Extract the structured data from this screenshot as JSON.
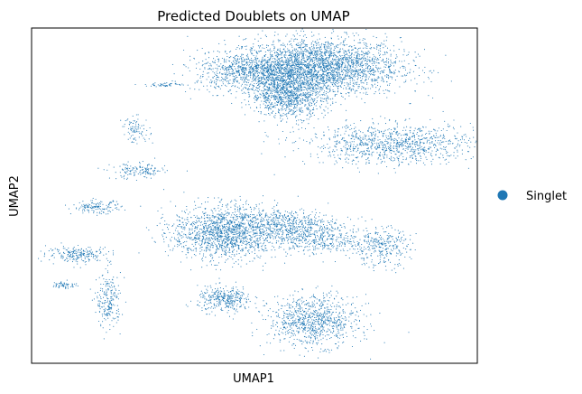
{
  "chart_data": {
    "type": "scatter",
    "title": "Predicted Doublets on UMAP",
    "xlabel": "UMAP1",
    "ylabel": "UMAP2",
    "xticks": [],
    "yticks": [],
    "grid": false,
    "legend_placement": "right",
    "series": [
      {
        "name": "Singlet",
        "color": "#1f77b4",
        "clusters": [
          {
            "label": "upper-main",
            "x": 7.2,
            "y": 7.9,
            "sx": 1.6,
            "sy": 0.8,
            "n": 2600
          },
          {
            "label": "upper-left-lobe",
            "x": 4.6,
            "y": 7.6,
            "sx": 1.2,
            "sy": 0.55,
            "n": 1000
          },
          {
            "label": "upper-stem",
            "x": 5.9,
            "y": 6.3,
            "sx": 0.75,
            "sy": 0.6,
            "n": 900
          },
          {
            "label": "arm-right",
            "x": 10.1,
            "y": 3.6,
            "sx": 1.7,
            "sy": 0.55,
            "n": 1000
          },
          {
            "label": "lower-left-big",
            "x": 3.3,
            "y": -1.3,
            "sx": 1.05,
            "sy": 0.75,
            "n": 1500
          },
          {
            "label": "lower-mid",
            "x": 5.9,
            "y": -0.9,
            "sx": 1.0,
            "sy": 0.45,
            "n": 550
          },
          {
            "label": "lower-right-mid",
            "x": 7.2,
            "y": -1.7,
            "sx": 0.9,
            "sy": 0.4,
            "n": 350
          },
          {
            "label": "bottom-small",
            "x": 3.3,
            "y": -5.0,
            "sx": 0.55,
            "sy": 0.35,
            "n": 350
          },
          {
            "label": "bottom-right-round",
            "x": 6.9,
            "y": -6.2,
            "sx": 0.9,
            "sy": 0.7,
            "n": 900
          },
          {
            "label": "right-small",
            "x": 9.6,
            "y": -2.1,
            "sx": 0.6,
            "sy": 0.55,
            "n": 300
          },
          {
            "label": "left-streak-1",
            "x": -2.6,
            "y": -2.5,
            "sx": 0.65,
            "sy": 0.22,
            "n": 220
          },
          {
            "label": "left-streak-2",
            "x": -1.4,
            "y": -5.1,
            "sx": 0.25,
            "sy": 0.75,
            "n": 220
          },
          {
            "label": "left-streak-3",
            "x": -1.9,
            "y": 0.1,
            "sx": 0.5,
            "sy": 0.18,
            "n": 140
          },
          {
            "label": "left-streak-4",
            "x": -0.2,
            "y": 2.1,
            "sx": 0.55,
            "sy": 0.22,
            "n": 150
          },
          {
            "label": "left-streak-5",
            "x": -0.3,
            "y": 4.4,
            "sx": 0.28,
            "sy": 0.35,
            "n": 90
          },
          {
            "label": "left-streak-6",
            "x": 0.9,
            "y": 6.9,
            "sx": 0.4,
            "sy": 0.06,
            "n": 50
          },
          {
            "label": "left-streak-7",
            "x": -3.2,
            "y": -4.2,
            "sx": 0.25,
            "sy": 0.1,
            "n": 60
          }
        ]
      }
    ],
    "xlim": [
      -4.5,
      13.5
    ],
    "ylim": [
      -8.5,
      10
    ]
  }
}
